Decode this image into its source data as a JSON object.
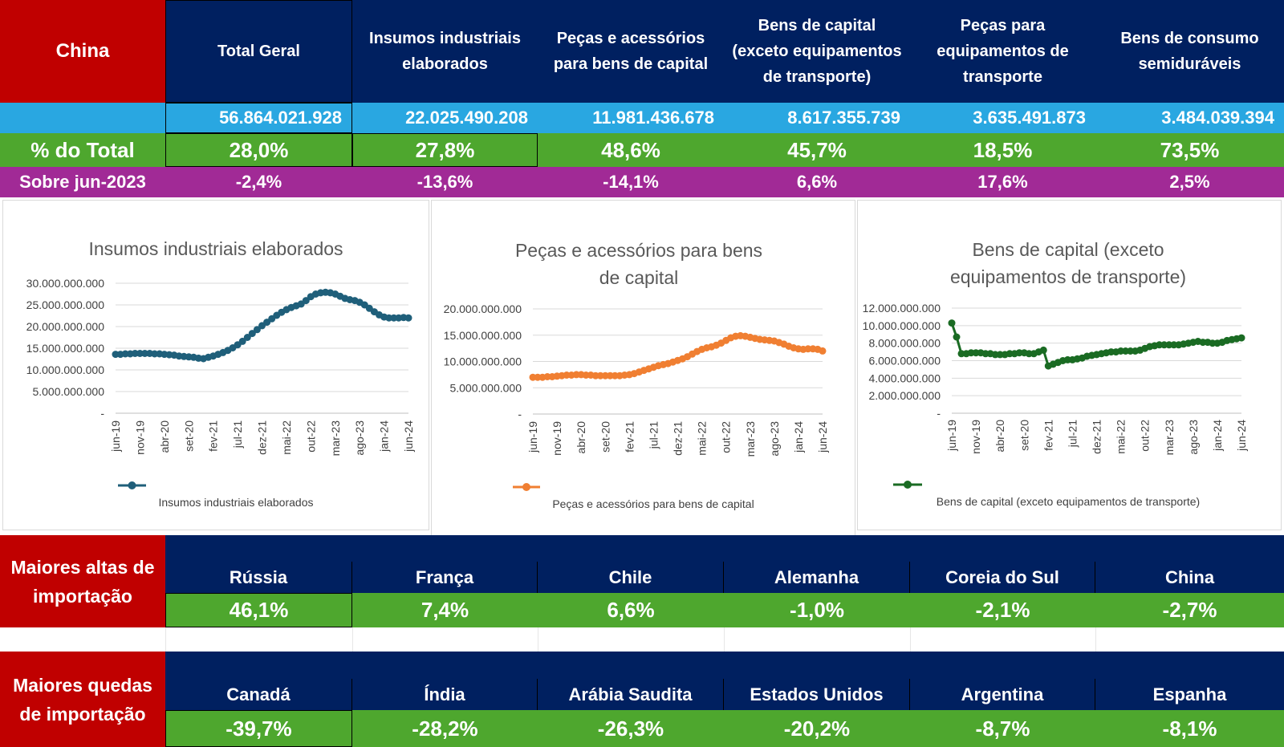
{
  "top_table": {
    "country": "China",
    "headers": [
      "Total Geral",
      "Insumos industriais elaborados",
      "Peças e acessórios para bens de capital",
      "Bens de capital (exceto equipamentos de transporte)",
      "Peças para equipamentos de transporte",
      "Bens de consumo semiduráveis"
    ],
    "values": [
      "56.864.021.928",
      "22.025.490.208",
      "11.981.436.678",
      "8.617.355.739",
      "3.635.491.873",
      "3.484.039.394"
    ],
    "pct_label": "% do Total",
    "pct_values": [
      "28,0%",
      "27,8%",
      "48,6%",
      "45,7%",
      "18,5%",
      "73,5%"
    ],
    "change_label": "Sobre jun-2023",
    "change_values": [
      "-2,4%",
      "-13,6%",
      "-14,1%",
      "6,6%",
      "17,6%",
      "2,5%"
    ]
  },
  "colors": {
    "navy": "#002060",
    "red": "#c00000",
    "cyan": "#29a7e1",
    "green": "#4ea72e",
    "purple": "#a12a96",
    "series1": "#1f5f7a",
    "series2": "#f07f32",
    "series3": "#1a6b23"
  },
  "chart_data": [
    {
      "type": "line",
      "title": "Insumos industriais elaborados",
      "x_ticks": [
        "jun-19",
        "nov-19",
        "abr-20",
        "set-20",
        "fev-21",
        "jul-21",
        "dez-21",
        "mai-22",
        "out-22",
        "mar-23",
        "ago-23",
        "jan-24",
        "jun-24"
      ],
      "y_ticks": [
        "30.000.000.000",
        "25.000.000.000",
        "20.000.000.000",
        "15.000.000.000",
        "10.000.000.000",
        "5.000.000.000",
        "-"
      ],
      "ylim": [
        0,
        30000000000
      ],
      "series": [
        {
          "name": "Insumos industriais elaborados",
          "values": [
            13600000000,
            13600000000,
            13700000000,
            13700000000,
            13800000000,
            13800000000,
            13800000000,
            13800000000,
            13700000000,
            13700000000,
            13600000000,
            13500000000,
            13400000000,
            13200000000,
            13100000000,
            13000000000,
            12900000000,
            12700000000,
            12600000000,
            12900000000,
            13200000000,
            13600000000,
            14000000000,
            14500000000,
            15100000000,
            15800000000,
            16600000000,
            17500000000,
            18400000000,
            19300000000,
            20200000000,
            21000000000,
            21800000000,
            22600000000,
            23300000000,
            23900000000,
            24400000000,
            24800000000,
            25200000000,
            26000000000,
            26900000000,
            27500000000,
            27800000000,
            27900000000,
            27800000000,
            27500000000,
            27000000000,
            26500000000,
            26200000000,
            26000000000,
            25600000000,
            25000000000,
            24200000000,
            23400000000,
            22700000000,
            22200000000,
            22000000000,
            22000000000,
            22000000000,
            22100000000,
            22000000000
          ]
        }
      ]
    },
    {
      "type": "line",
      "title": "Peças e acessórios para bens de capital",
      "x_ticks": [
        "jun-19",
        "nov-19",
        "abr-20",
        "set-20",
        "fev-21",
        "jul-21",
        "dez-21",
        "mai-22",
        "out-22",
        "mar-23",
        "ago-23",
        "jan-24",
        "jun-24"
      ],
      "y_ticks": [
        "20.000.000.000",
        "15.000.000.000",
        "10.000.000.000",
        "5.000.000.000",
        "-"
      ],
      "ylim": [
        0,
        20000000000
      ],
      "series": [
        {
          "name": "Peças e acessórios para bens de capital",
          "values": [
            7000000000,
            7000000000,
            7000000000,
            7100000000,
            7100000000,
            7200000000,
            7300000000,
            7400000000,
            7400000000,
            7500000000,
            7500000000,
            7400000000,
            7400000000,
            7300000000,
            7300000000,
            7300000000,
            7300000000,
            7300000000,
            7300000000,
            7400000000,
            7500000000,
            7700000000,
            8000000000,
            8300000000,
            8600000000,
            8900000000,
            9200000000,
            9400000000,
            9600000000,
            9900000000,
            10200000000,
            10500000000,
            10900000000,
            11400000000,
            11900000000,
            12300000000,
            12600000000,
            12800000000,
            13100000000,
            13500000000,
            14000000000,
            14500000000,
            14800000000,
            14900000000,
            14800000000,
            14600000000,
            14400000000,
            14200000000,
            14100000000,
            14000000000,
            13900000000,
            13600000000,
            13300000000,
            12900000000,
            12600000000,
            12400000000,
            12300000000,
            12400000000,
            12400000000,
            12300000000,
            12000000000
          ]
        }
      ]
    },
    {
      "type": "line",
      "title": "Bens de capital (exceto equipamentos de transporte)",
      "x_ticks": [
        "jun-19",
        "nov-19",
        "abr-20",
        "set-20",
        "fev-21",
        "jul-21",
        "dez-21",
        "mai-22",
        "out-22",
        "mar-23",
        "ago-23",
        "jan-24",
        "jun-24"
      ],
      "y_ticks": [
        "12.000.000.000",
        "10.000.000.000",
        "8.000.000.000",
        "6.000.000.000",
        "4.000.000.000",
        "2.000.000.000",
        "-"
      ],
      "ylim": [
        0,
        12000000000
      ],
      "series": [
        {
          "name": "Bens de capital (exceto equipamentos de transporte)",
          "values": [
            10300000000,
            8700000000,
            6800000000,
            6800000000,
            6900000000,
            6900000000,
            6900000000,
            6800000000,
            6800000000,
            6700000000,
            6700000000,
            6700000000,
            6800000000,
            6800000000,
            6900000000,
            6900000000,
            6800000000,
            6800000000,
            7000000000,
            7200000000,
            5400000000,
            5600000000,
            5800000000,
            6000000000,
            6100000000,
            6100000000,
            6200000000,
            6300000000,
            6500000000,
            6600000000,
            6700000000,
            6800000000,
            6900000000,
            7000000000,
            7000000000,
            7100000000,
            7100000000,
            7100000000,
            7100000000,
            7200000000,
            7400000000,
            7600000000,
            7700000000,
            7800000000,
            7800000000,
            7800000000,
            7800000000,
            7800000000,
            7900000000,
            8000000000,
            8100000000,
            8200000000,
            8100000000,
            8100000000,
            8000000000,
            8000000000,
            8100000000,
            8300000000,
            8400000000,
            8500000000,
            8600000000
          ]
        }
      ]
    }
  ],
  "altas": {
    "label": "Maiores altas de importação",
    "countries": [
      "Rússia",
      "França",
      "Chile",
      "Alemanha",
      "Coreia do Sul",
      "China"
    ],
    "values": [
      "46,1%",
      "7,4%",
      "6,6%",
      "-1,0%",
      "-2,1%",
      "-2,7%"
    ]
  },
  "quedas": {
    "label": "Maiores quedas de importação",
    "countries": [
      "Canadá",
      "Índia",
      "Arábia Saudita",
      "Estados Unidos",
      "Argentina",
      "Espanha"
    ],
    "values": [
      "-39,7%",
      "-28,2%",
      "-26,3%",
      "-20,2%",
      "-8,7%",
      "-8,1%"
    ]
  }
}
